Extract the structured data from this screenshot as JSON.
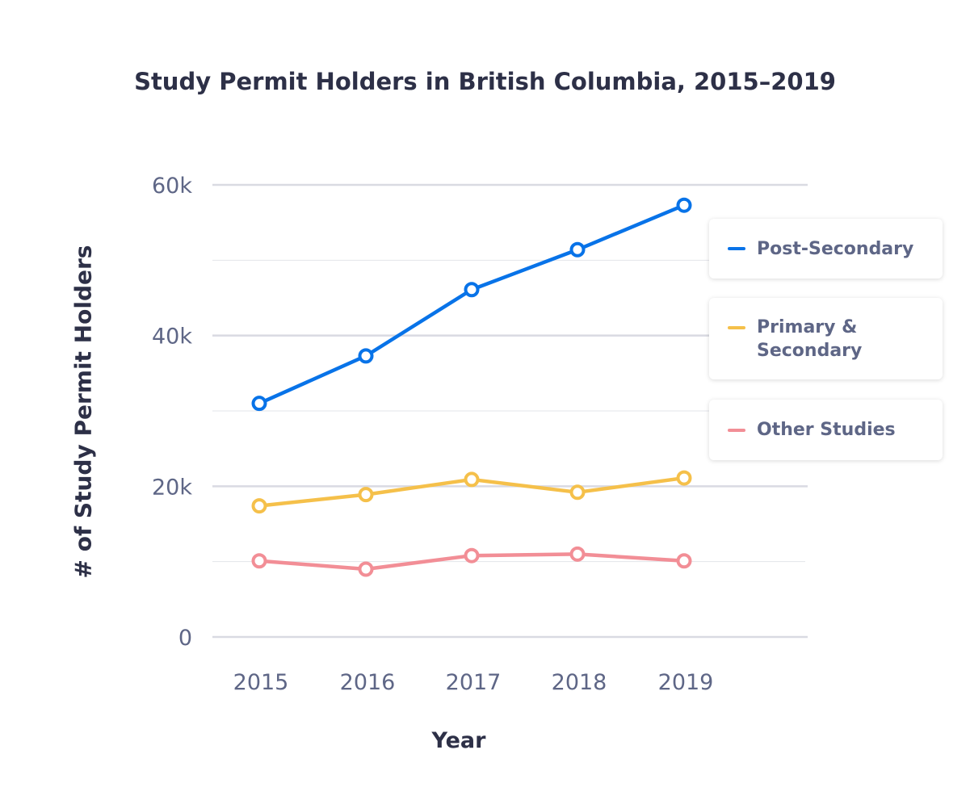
{
  "chart_data": {
    "type": "line",
    "title": "Study Permit Holders in British Columbia, 2015–2019",
    "xlabel": "Year",
    "ylabel": "# of Study Permit Holders",
    "categories": [
      "2015",
      "2016",
      "2017",
      "2018",
      "2019"
    ],
    "ylim": [
      0,
      60000
    ],
    "yticks": [
      0,
      20000,
      40000,
      60000
    ],
    "ytick_labels": [
      "0",
      "20k",
      "40k",
      "60k"
    ],
    "minor_gridlines": [
      10000,
      30000,
      50000
    ],
    "grid": true,
    "legend_position": "right",
    "series": [
      {
        "name": "Post-Secondary",
        "color": "#0873e8",
        "values": [
          31000,
          37300,
          46100,
          51400,
          57300
        ]
      },
      {
        "name": "Primary & Secondary",
        "color": "#f5c04a",
        "values": [
          17400,
          18900,
          20900,
          19200,
          21100
        ]
      },
      {
        "name": "Other Studies",
        "color": "#f28e96",
        "values": [
          10100,
          9000,
          10800,
          11000,
          10100
        ]
      }
    ]
  }
}
